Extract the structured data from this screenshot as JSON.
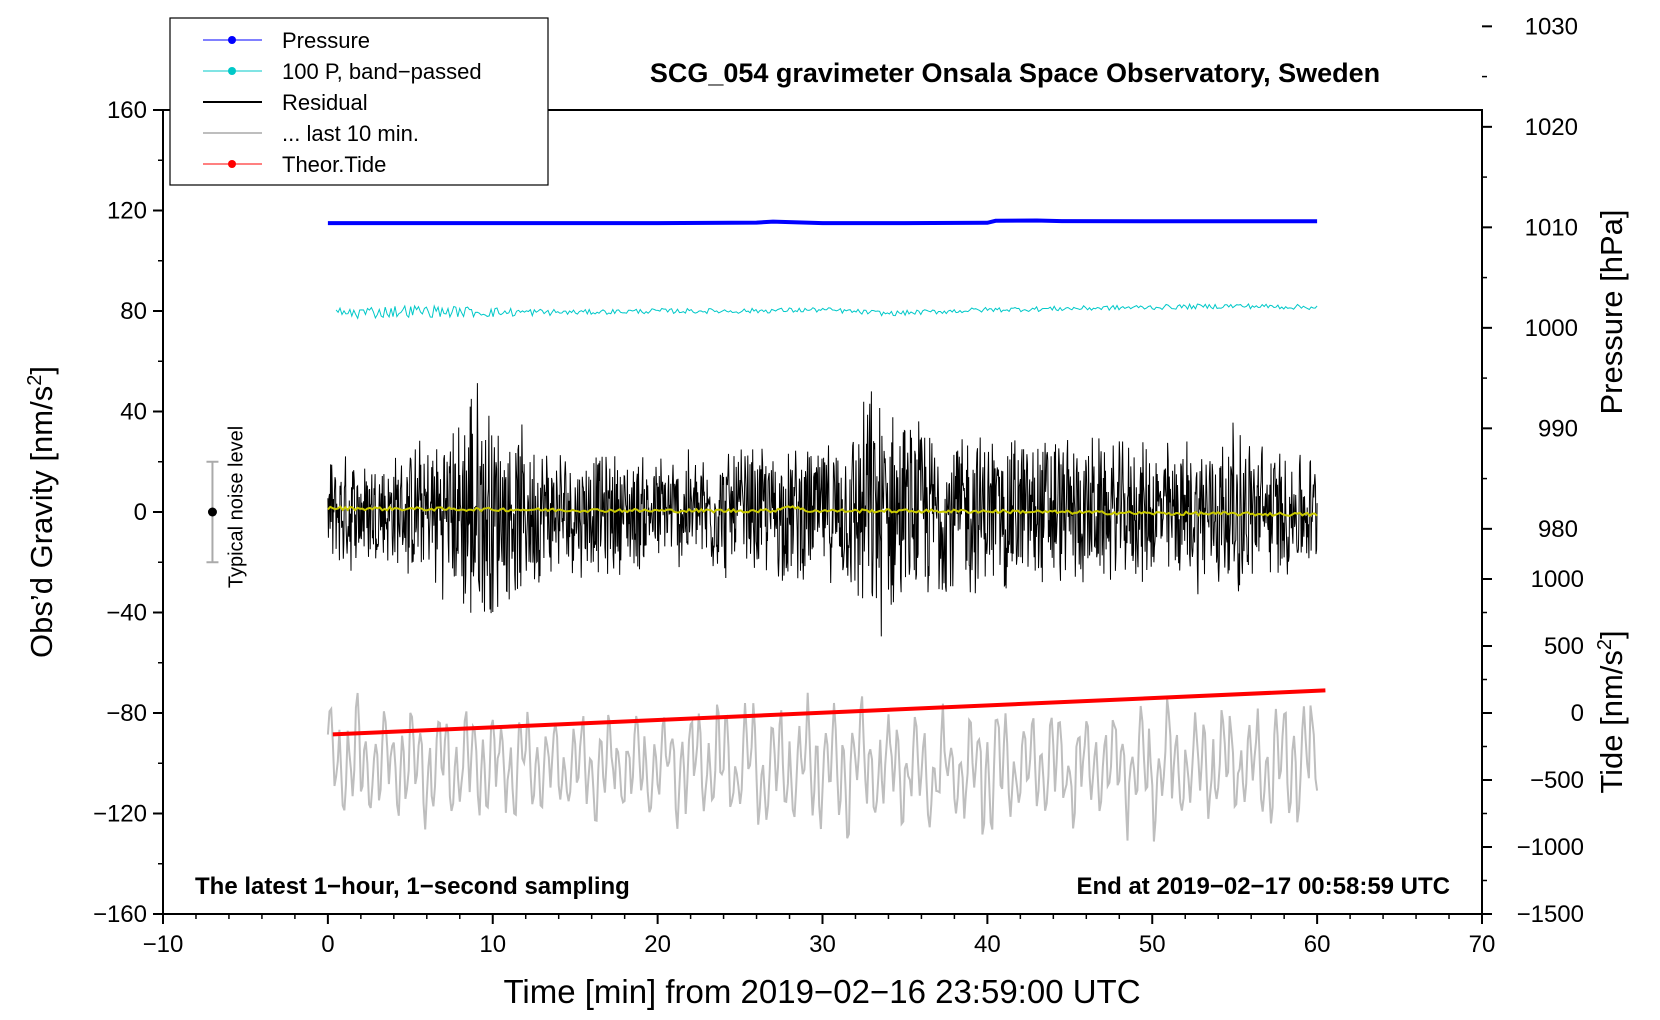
{
  "chart_data": {
    "type": "line",
    "title": "SCG_054 gravimeter Onsala Space Observatory, Sweden",
    "xlabel": "Time [min] from 2019−02−16 23:59:00 UTC",
    "ylabel_left_main": "Obs’d Gravity [nm/s",
    "ylabel_left_sup": "2",
    "ylabel_left_end": "]",
    "ylabel_right_top": "Pressure [hPa]",
    "ylabel_right_bottom_main": "Tide [nm/s",
    "ylabel_right_bottom_sup": "2",
    "ylabel_right_bottom_end": "]",
    "xlim": [
      -10,
      70
    ],
    "ylim_left": [
      -160,
      160
    ],
    "x_ticks": [
      -10,
      0,
      10,
      20,
      30,
      40,
      50,
      60,
      70
    ],
    "x_tick_labels": [
      "−10",
      "0",
      "10",
      "20",
      "30",
      "40",
      "50",
      "60",
      "70"
    ],
    "y_ticks": [
      -160,
      -120,
      -80,
      -40,
      0,
      40,
      80,
      120,
      160
    ],
    "y_tick_labels": [
      "−160",
      "−120",
      "−80",
      "−40",
      "0",
      "40",
      "80",
      "120",
      "160"
    ],
    "pressure_axis": {
      "ticks": [
        980,
        990,
        1000,
        1010,
        1020,
        1030
      ],
      "tick_labels": [
        "980",
        "990",
        "1000",
        "1010",
        "1020",
        "1030"
      ],
      "map": {
        "hpa_1000_at_gravity": 73.3,
        "gravity_per_hpa": 4.0
      }
    },
    "tide_axis": {
      "ticks": [
        -1500,
        -1000,
        -500,
        0,
        500,
        1000
      ],
      "tick_labels": [
        "−1500",
        "−1000",
        "−500",
        "0",
        "500",
        "1000"
      ],
      "map": {
        "tide_0_at_gravity": -80.0,
        "gravity_per_nms2": 0.05333
      }
    },
    "annotation_left": "The latest 1−hour, 1−second sampling",
    "annotation_right": "End at 2019−02−17 00:58:59 UTC",
    "noise_label": "Typical noise level",
    "noise_bar": {
      "x": -7,
      "center": 0,
      "half_range": 20
    },
    "legend": [
      {
        "name": "Pressure",
        "color": "#0000ff",
        "marker": true,
        "width": 1
      },
      {
        "name": "100 P, band−passed",
        "color": "#00c8c8",
        "marker": true,
        "width": 1
      },
      {
        "name": "Residual",
        "color": "#000000",
        "marker": false,
        "width": 2
      },
      {
        "name": "... last 10 min.",
        "color": "#bebebe",
        "marker": false,
        "width": 2
      },
      {
        "name": "Theor.Tide",
        "color": "#ff0000",
        "marker": true,
        "width": 1
      }
    ],
    "series": [
      {
        "name": "Pressure",
        "color": "#0000ff",
        "x": [
          0,
          10,
          20,
          26,
          27,
          30,
          35,
          40,
          40.5,
          43,
          44.5,
          50,
          55,
          60
        ],
        "y": [
          115.0,
          115.0,
          115.0,
          115.2,
          115.6,
          115.0,
          115.0,
          115.1,
          115.9,
          116.0,
          115.8,
          115.7,
          115.7,
          115.7
        ]
      },
      {
        "name": "100 P, band−passed",
        "color": "#00c8c8",
        "x": [
          0,
          5,
          10,
          15,
          20,
          25,
          30,
          34,
          40,
          45,
          50,
          55,
          60
        ],
        "y": [
          79,
          80,
          79.5,
          79.5,
          80,
          80,
          80.5,
          79,
          80.5,
          81,
          81.5,
          82,
          81.5
        ],
        "noise_amplitude": [
          2.5,
          2.5,
          2.0,
          1.0,
          1.0,
          1.0,
          1.0,
          1.0,
          1.0,
          1.0,
          1.0,
          1.0,
          1.0
        ]
      },
      {
        "name": "Residual",
        "color": "#000000",
        "x": [
          0,
          4,
          8,
          8.5,
          9.5,
          10.5,
          14,
          20,
          24,
          28,
          31,
          33,
          34,
          35,
          38,
          40,
          44,
          48,
          52,
          55,
          57,
          60
        ],
        "envelope": [
          25,
          25,
          40,
          60,
          55,
          40,
          28,
          25,
          28,
          30,
          30,
          55,
          50,
          40,
          38,
          35,
          35,
          30,
          32,
          38,
          30,
          25
        ]
      },
      {
        "name": "Residual mean",
        "color": "#c8c800",
        "x": [
          0,
          10,
          20,
          27,
          28,
          29,
          30,
          40,
          50,
          60
        ],
        "y": [
          1.5,
          1.0,
          0.5,
          0.5,
          2.5,
          0.5,
          0.5,
          0.3,
          -0.5,
          -1.0
        ]
      },
      {
        "name": "... last 10 min.",
        "color": "#bebebe",
        "x": [
          0,
          5,
          10,
          15,
          20,
          25,
          30,
          35,
          38,
          39,
          40,
          42,
          45,
          50,
          55,
          60
        ],
        "center": [
          -100,
          -100,
          -101,
          -101,
          -101,
          -101,
          -102,
          -102,
          -102,
          -102,
          -102,
          -102,
          -101,
          -101,
          -101,
          -100
        ],
        "envelope": [
          25,
          22,
          22,
          20,
          20,
          25,
          25,
          22,
          22,
          28,
          28,
          22,
          22,
          25,
          25,
          25
        ]
      },
      {
        "name": "Theor.Tide",
        "color": "#ff0000",
        "x": [
          0.3,
          60.5
        ],
        "y": [
          -88.5,
          -71
        ]
      }
    ]
  }
}
